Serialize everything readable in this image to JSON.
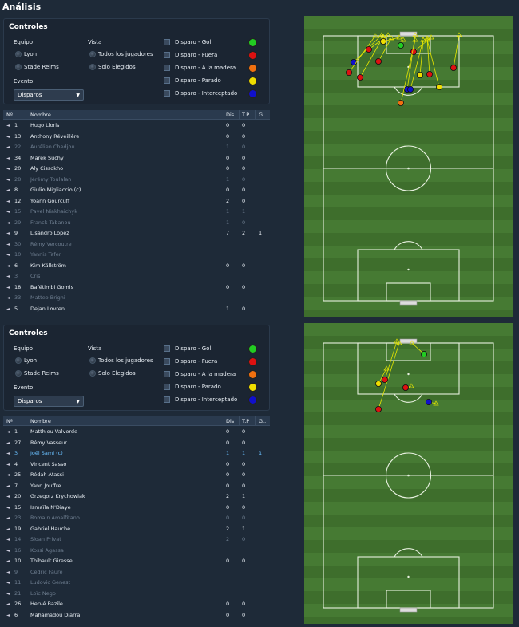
{
  "page_title": "Análisis",
  "controls": {
    "title": "Controles",
    "team_label": "Equipo",
    "view_label": "Vista",
    "event_label": "Evento",
    "view_all": "Todos los jugadores",
    "view_selected": "Solo Elegidos",
    "event_value": "Disparos",
    "legend": [
      {
        "label": "Disparo - Gol",
        "color": "#22cc22"
      },
      {
        "label": "Disparo - Fuera",
        "color": "#dd1111"
      },
      {
        "label": "Disparo - A la madera",
        "color": "#f07010"
      },
      {
        "label": "Disparo - Parado",
        "color": "#eedd00"
      },
      {
        "label": "Disparo - Interceptado",
        "color": "#1010cc"
      }
    ]
  },
  "teams": [
    "Lyon",
    "Stade Reims"
  ],
  "table_headers": {
    "num": "Nº",
    "name": "Nombre",
    "dis": "Dis",
    "tp": "T.P",
    "g": "G.."
  },
  "lists": [
    {
      "players": [
        {
          "n": "1",
          "name": "Hugo Lloris",
          "dis": "0",
          "tp": "0",
          "g": "",
          "dim": false
        },
        {
          "n": "13",
          "name": "Anthony Réveillère",
          "dis": "0",
          "tp": "0",
          "g": "",
          "dim": false
        },
        {
          "n": "22",
          "name": "Aurélien Chedjou",
          "dis": "1",
          "tp": "0",
          "g": "",
          "dim": true
        },
        {
          "n": "34",
          "name": "Marek Suchy",
          "dis": "0",
          "tp": "0",
          "g": "",
          "dim": false
        },
        {
          "n": "20",
          "name": "Aly Cissokho",
          "dis": "0",
          "tp": "0",
          "g": "",
          "dim": false
        },
        {
          "n": "28",
          "name": "Jérémy Toulalan",
          "dis": "1",
          "tp": "0",
          "g": "",
          "dim": true
        },
        {
          "n": "8",
          "name": "Giulio Migliaccio (c)",
          "dis": "0",
          "tp": "0",
          "g": "",
          "dim": false
        },
        {
          "n": "12",
          "name": "Yoann Gourcuff",
          "dis": "2",
          "tp": "0",
          "g": "",
          "dim": false
        },
        {
          "n": "15",
          "name": "Pavel Niakhaichyk",
          "dis": "1",
          "tp": "1",
          "g": "",
          "dim": true
        },
        {
          "n": "29",
          "name": "Franck Tabanou",
          "dis": "1",
          "tp": "0",
          "g": "",
          "dim": true
        },
        {
          "n": "9",
          "name": "Lisandro López",
          "dis": "7",
          "tp": "2",
          "g": "1",
          "dim": false
        },
        {
          "n": "30",
          "name": "Rémy Vercoutre",
          "dis": "",
          "tp": "",
          "g": "",
          "dim": true
        },
        {
          "n": "10",
          "name": "Yannis Tafer",
          "dis": "",
          "tp": "",
          "g": "",
          "dim": true
        },
        {
          "n": "6",
          "name": "Kim Källström",
          "dis": "0",
          "tp": "0",
          "g": "",
          "dim": false
        },
        {
          "n": "3",
          "name": "Cris",
          "dis": "",
          "tp": "",
          "g": "",
          "dim": true
        },
        {
          "n": "18",
          "name": "Bafétimbi Gomis",
          "dis": "0",
          "tp": "0",
          "g": "",
          "dim": false
        },
        {
          "n": "33",
          "name": "Matteo Brighi",
          "dis": "",
          "tp": "",
          "g": "",
          "dim": true
        },
        {
          "n": "5",
          "name": "Dejan Lovren",
          "dis": "1",
          "tp": "0",
          "g": "",
          "dim": false
        }
      ]
    },
    {
      "players": [
        {
          "n": "1",
          "name": "Matthieu Valverde",
          "dis": "0",
          "tp": "0",
          "g": "",
          "dim": false
        },
        {
          "n": "27",
          "name": "Rémy Vasseur",
          "dis": "0",
          "tp": "0",
          "g": "",
          "dim": false
        },
        {
          "n": "3",
          "name": "Joël Sami (c)",
          "dis": "1",
          "tp": "1",
          "g": "1",
          "dim": false,
          "hl": true
        },
        {
          "n": "4",
          "name": "Vincent Sasso",
          "dis": "0",
          "tp": "0",
          "g": "",
          "dim": false
        },
        {
          "n": "25",
          "name": "Rédah Atassi",
          "dis": "0",
          "tp": "0",
          "g": "",
          "dim": false
        },
        {
          "n": "7",
          "name": "Yann Jouffre",
          "dis": "0",
          "tp": "0",
          "g": "",
          "dim": false
        },
        {
          "n": "20",
          "name": "Grzegorz Krychowiak",
          "dis": "2",
          "tp": "1",
          "g": "",
          "dim": false
        },
        {
          "n": "15",
          "name": "Ismaïla N'Diaye",
          "dis": "0",
          "tp": "0",
          "g": "",
          "dim": false
        },
        {
          "n": "23",
          "name": "Romain Amalfitano",
          "dis": "0",
          "tp": "0",
          "g": "",
          "dim": true
        },
        {
          "n": "19",
          "name": "Gabriel Hauche",
          "dis": "2",
          "tp": "1",
          "g": "",
          "dim": false
        },
        {
          "n": "14",
          "name": "Sloan Privat",
          "dis": "2",
          "tp": "0",
          "g": "",
          "dim": true
        },
        {
          "n": "16",
          "name": "Kossi Agassa",
          "dis": "",
          "tp": "",
          "g": "",
          "dim": true
        },
        {
          "n": "10",
          "name": "Thibault Giresse",
          "dis": "0",
          "tp": "0",
          "g": "",
          "dim": false
        },
        {
          "n": "9",
          "name": "Cédric Fauré",
          "dis": "",
          "tp": "",
          "g": "",
          "dim": true
        },
        {
          "n": "11",
          "name": "Ludovic Genest",
          "dis": "",
          "tp": "",
          "g": "",
          "dim": true
        },
        {
          "n": "21",
          "name": "Loïc Nego",
          "dis": "",
          "tp": "",
          "g": "",
          "dim": true
        },
        {
          "n": "26",
          "name": "Hervé Bazile",
          "dis": "0",
          "tp": "0",
          "g": "",
          "dim": false
        },
        {
          "n": "6",
          "name": "Mahamadou Diarra",
          "dis": "0",
          "tp": "0",
          "g": "",
          "dim": false
        }
      ]
    }
  ]
}
